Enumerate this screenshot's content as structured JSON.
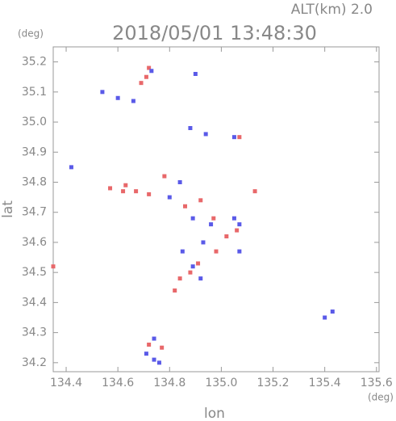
{
  "chart_data": {
    "type": "scatter",
    "title": "2018/05/01 13:48:30",
    "subtitle": "ALT(km) 2.0",
    "y_unit": "(deg)",
    "x_unit": "(deg)",
    "x_label": "lon",
    "y_label": "lat",
    "xlim": [
      134.35,
      135.61
    ],
    "ylim": [
      34.17,
      35.25
    ],
    "xticks": [
      134.4,
      134.6,
      134.8,
      {
        "value": 135.0,
        "label": "135.0"
      },
      135.2,
      135.4,
      135.6
    ],
    "yticks": [
      34.2,
      34.3,
      34.4,
      34.5,
      34.6,
      34.7,
      34.8,
      34.9,
      {
        "value": 35.0,
        "label": "35.0"
      },
      35.1,
      35.2
    ],
    "series": [
      {
        "color": "#e8686a",
        "x": [
          134.72,
          134.71,
          134.69,
          134.57,
          134.62,
          134.67,
          134.72,
          134.78,
          134.86,
          134.92,
          134.97,
          135.02,
          135.06,
          134.98,
          134.88,
          134.84,
          134.82,
          134.91,
          134.35,
          135.13,
          135.07,
          134.72,
          134.77,
          134.63
        ],
        "y": [
          35.18,
          35.15,
          35.13,
          34.78,
          34.77,
          34.77,
          34.76,
          34.82,
          34.72,
          34.74,
          34.68,
          34.62,
          34.64,
          34.57,
          34.5,
          34.48,
          34.44,
          34.53,
          34.52,
          34.77,
          34.95,
          34.26,
          34.25,
          34.79
        ]
      },
      {
        "color": "#5a5ae8",
        "x": [
          134.73,
          134.54,
          134.6,
          134.66,
          134.9,
          134.88,
          134.94,
          135.05,
          134.42,
          134.84,
          134.8,
          134.89,
          134.96,
          135.05,
          135.07,
          134.93,
          134.85,
          134.89,
          134.92,
          135.07,
          135.4,
          135.43,
          134.74,
          134.76,
          134.71,
          134.74
        ],
        "y": [
          35.17,
          35.1,
          35.08,
          35.07,
          35.16,
          34.98,
          34.96,
          34.95,
          34.85,
          34.8,
          34.75,
          34.68,
          34.66,
          34.68,
          34.66,
          34.6,
          34.57,
          34.52,
          34.48,
          34.57,
          34.35,
          34.37,
          34.21,
          34.2,
          34.23,
          34.28
        ]
      }
    ]
  }
}
